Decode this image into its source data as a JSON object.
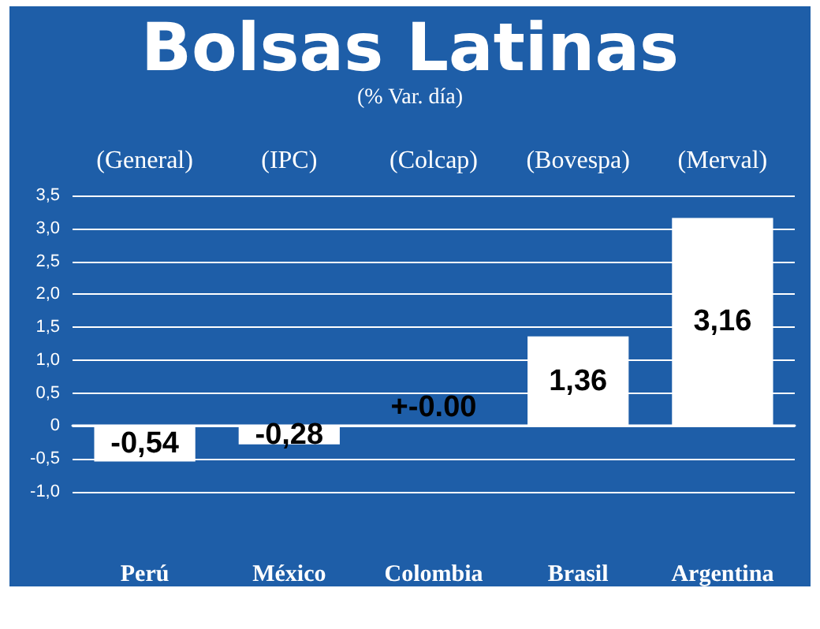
{
  "chart_data": {
    "type": "bar",
    "title": "Bolsas Latinas",
    "subtitle": "(% Var. día)",
    "categories": [
      "Perú",
      "México",
      "Colombia",
      "Brasil",
      "Argentina"
    ],
    "values": [
      -0.54,
      -0.28,
      0,
      1.36,
      3.16
    ],
    "value_labels": [
      "-0,54",
      "-0,28",
      "+-0.00",
      "1,36",
      "3,16"
    ],
    "color": "#ffffff",
    "annotations": [
      "(General)",
      "(IPC)",
      "(Colcap)",
      "(Bovespa)",
      "(Merval)"
    ],
    "ylim": [
      -1,
      3.5
    ],
    "yticks": [
      {
        "value": -1,
        "label": "-1,0"
      },
      {
        "value": -0.5,
        "label": "-0,5"
      },
      {
        "value": 0,
        "label": "0"
      },
      {
        "value": 0.5,
        "label": "0,5"
      },
      {
        "value": 1,
        "label": "1,0"
      },
      {
        "value": 1.5,
        "label": "1,5"
      },
      {
        "value": 2,
        "label": "2,0"
      },
      {
        "value": 2.5,
        "label": "2,5"
      },
      {
        "value": 3,
        "label": "3,0"
      },
      {
        "value": 3.5,
        "label": "3,5"
      }
    ],
    "grid": "y"
  }
}
